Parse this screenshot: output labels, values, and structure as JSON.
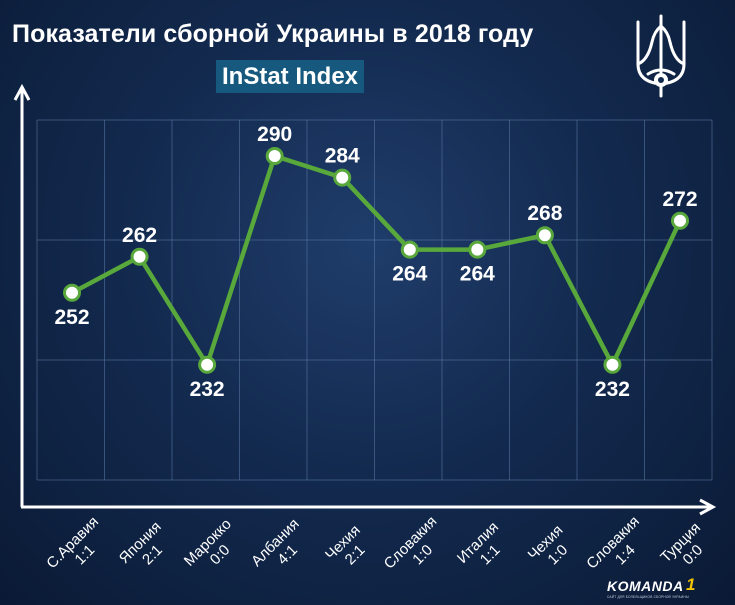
{
  "header": {
    "title": "Показатели сборной Украины в 2018 году",
    "subtitle": "InStat Index"
  },
  "icons": {
    "emblem": "ukraine-trident-emblem-icon",
    "brand": "komanda-logo"
  },
  "colors": {
    "background": "#132a4f",
    "line": "#58a83c",
    "subtitle_bg": "#16587e",
    "logo_accent": "#f2c200"
  },
  "brand": {
    "name": "KOMANDA",
    "number": "1",
    "tagline": "САЙТ ДЛЯ БОЛЕЛЬЩИКОВ СБОРНОЙ УКРАИНЫ"
  },
  "chart_data": {
    "type": "line",
    "title": "Показатели сборной Украины в 2018 году",
    "subtitle": "InStat Index",
    "categories": [
      [
        "С.Аравия",
        "1:1"
      ],
      [
        "Япония",
        "2:1"
      ],
      [
        "Марокко",
        "0:0"
      ],
      [
        "Албания",
        "4:1"
      ],
      [
        "Чехия",
        "2:1"
      ],
      [
        "Словакия",
        "1:0"
      ],
      [
        "Италия",
        "1:1"
      ],
      [
        "Чехия",
        "1:0"
      ],
      [
        "Словакия",
        "1:4"
      ],
      [
        "Турция",
        "0:0"
      ]
    ],
    "values": [
      252,
      262,
      232,
      290,
      284,
      264,
      264,
      268,
      232,
      272
    ],
    "label_position": [
      "below",
      "above",
      "below",
      "above",
      "above",
      "below",
      "below",
      "above",
      "below",
      "above"
    ],
    "ylim": [
      200,
      300
    ],
    "grid": true,
    "legend": "none"
  }
}
